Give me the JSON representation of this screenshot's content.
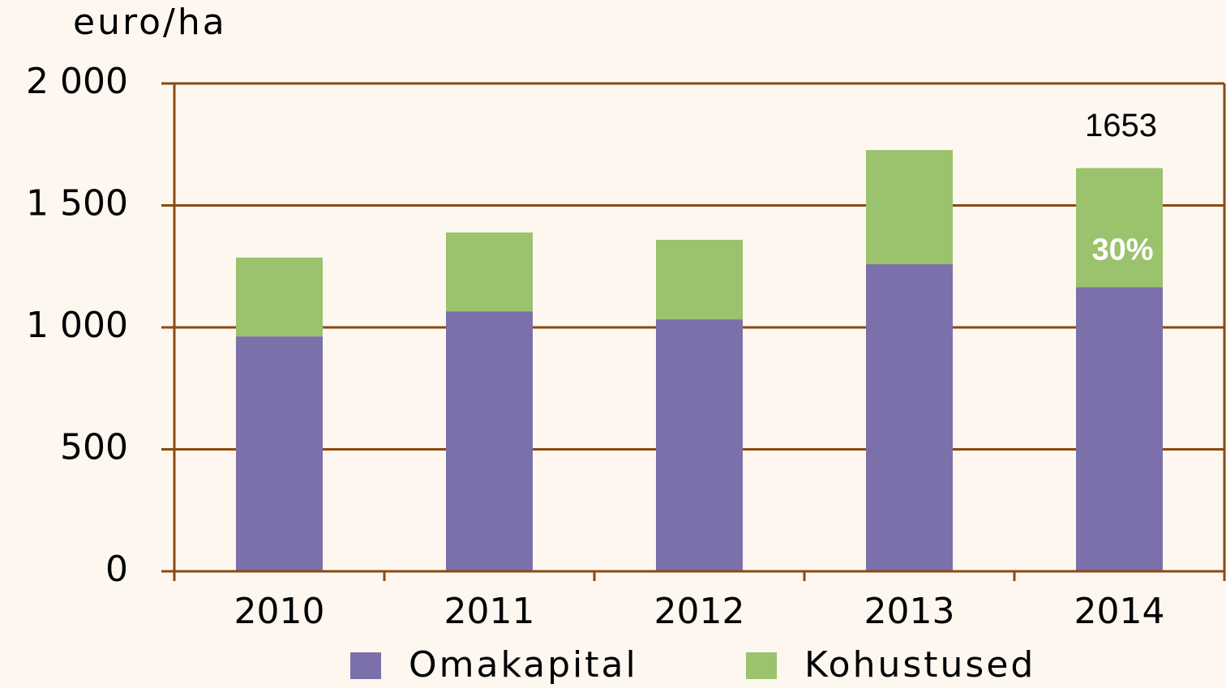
{
  "chart_data": {
    "type": "bar",
    "stacked": true,
    "y_axis_label": "euro/ha",
    "categories": [
      "2010",
      "2011",
      "2012",
      "2013",
      "2014"
    ],
    "series": [
      {
        "name": "Omakapital",
        "color": "#7b70aa",
        "values": [
          963,
          1066,
          1033,
          1259,
          1165
        ]
      },
      {
        "name": "Kohustused",
        "color": "#9bc26c",
        "values": [
          323,
          323,
          326,
          468,
          488
        ]
      }
    ],
    "ylim": [
      0,
      2000
    ],
    "yticks": [
      0,
      500,
      {
        "value": 1000,
        "label": "1 000"
      },
      {
        "value": 1500,
        "label": "1 500"
      },
      {
        "value": 2000,
        "label": "2 000"
      }
    ],
    "grid": true,
    "legend": "bottom",
    "annotations": [
      "1653",
      "30%"
    ]
  }
}
